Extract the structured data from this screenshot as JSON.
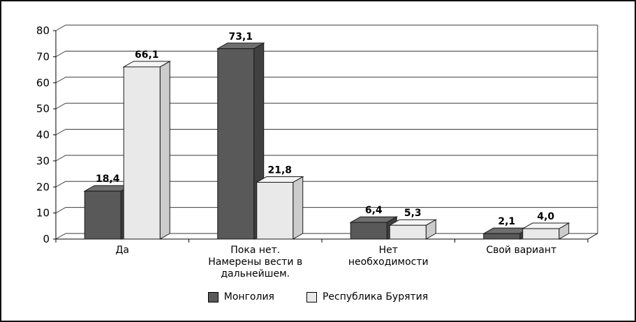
{
  "figure": {
    "background": "#ffffff",
    "border_color": "#111111"
  },
  "chart_data": {
    "type": "bar",
    "style": "3d-grouped-columns",
    "title": "",
    "xlabel": "",
    "ylabel": "",
    "categories": [
      "Да",
      "Пока нет.\nНамерены вести в\nдальнейшем.",
      "Нет\nнеобходимости",
      "Свой вариант"
    ],
    "series": [
      {
        "name": "Монголия",
        "values": [
          18.4,
          73.1,
          6.4,
          2.1
        ],
        "color": "#595959",
        "color_top": "#6f6f6f",
        "color_side": "#404040"
      },
      {
        "name": "Республика Бурятия",
        "values": [
          66.1,
          21.8,
          5.3,
          4.0
        ],
        "color": "#e9e9e9",
        "color_top": "#f5f5f5",
        "color_side": "#cccccc"
      }
    ],
    "value_labels": [
      [
        "18,4",
        "73,1",
        "6,4",
        "2,1"
      ],
      [
        "66,1",
        "21,8",
        "5,3",
        "4,0"
      ]
    ],
    "y_ticks": [
      0,
      10,
      20,
      30,
      40,
      50,
      60,
      70,
      80
    ],
    "ylim": [
      0,
      80
    ],
    "grid": true,
    "grid_color": "#3a3a3a",
    "axis_color": "#000000",
    "outline_color": "#1a1a1a",
    "legend_position": "bottom",
    "decimal_separator": ","
  }
}
